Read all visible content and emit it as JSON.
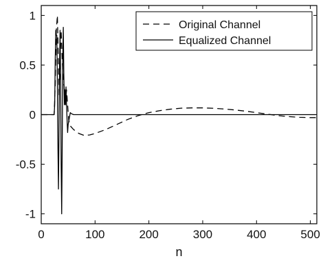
{
  "chart_data": {
    "type": "line",
    "title": "",
    "xlabel": "n",
    "ylabel": "",
    "xlim": [
      0,
      512
    ],
    "ylim": [
      -1.1,
      1.1
    ],
    "x_ticks": [
      0,
      100,
      200,
      300,
      400,
      500
    ],
    "y_ticks": [
      1,
      0.5,
      0,
      -0.5,
      -1
    ],
    "x_tick_labels": [
      "0",
      "100",
      "200",
      "300",
      "400",
      "500"
    ],
    "y_tick_labels": [
      "1",
      "0.5",
      "0",
      "-0.5",
      "-1"
    ],
    "grid": false,
    "legend": {
      "placement": "top-right",
      "entries": [
        "Original Channel",
        "Equalized Channel"
      ]
    },
    "series": [
      {
        "name": "Original Channel",
        "style": "dashed",
        "color": "#000000",
        "points": [
          [
            0,
            0
          ],
          [
            24,
            0
          ],
          [
            26,
            0.3
          ],
          [
            28,
            0.85
          ],
          [
            30,
            1.0
          ],
          [
            31,
            0.75
          ],
          [
            33,
            0.2
          ],
          [
            35,
            0.5
          ],
          [
            37,
            0.85
          ],
          [
            39,
            0.55
          ],
          [
            41,
            0.35
          ],
          [
            43,
            0.25
          ],
          [
            45,
            0.1
          ],
          [
            47,
            0.25
          ],
          [
            49,
            0.1
          ],
          [
            51,
            -0.05
          ],
          [
            53,
            -0.1
          ],
          [
            55,
            -0.12
          ],
          [
            60,
            -0.15
          ],
          [
            70,
            -0.19
          ],
          [
            80,
            -0.21
          ],
          [
            90,
            -0.205
          ],
          [
            100,
            -0.19
          ],
          [
            120,
            -0.15
          ],
          [
            140,
            -0.1
          ],
          [
            160,
            -0.05
          ],
          [
            180,
            -0.01
          ],
          [
            200,
            0.02
          ],
          [
            220,
            0.04
          ],
          [
            240,
            0.055
          ],
          [
            260,
            0.065
          ],
          [
            280,
            0.068
          ],
          [
            300,
            0.068
          ],
          [
            320,
            0.064
          ],
          [
            340,
            0.057
          ],
          [
            360,
            0.047
          ],
          [
            380,
            0.035
          ],
          [
            400,
            0.02
          ],
          [
            420,
            0.005
          ],
          [
            440,
            -0.01
          ],
          [
            460,
            -0.02
          ],
          [
            480,
            -0.027
          ],
          [
            500,
            -0.03
          ],
          [
            510,
            -0.03
          ]
        ]
      },
      {
        "name": "Equalized Channel",
        "style": "solid",
        "color": "#000000",
        "points": [
          [
            0,
            0
          ],
          [
            24,
            0
          ],
          [
            25,
            0.1
          ],
          [
            26,
            0.55
          ],
          [
            27,
            0.85
          ],
          [
            28,
            0.8
          ],
          [
            29,
            0.8
          ],
          [
            30,
            0.3
          ],
          [
            31,
            -0.3
          ],
          [
            32,
            -0.75
          ],
          [
            33,
            -0.2
          ],
          [
            34,
            0.5
          ],
          [
            35,
            0.85
          ],
          [
            36,
            0.35
          ],
          [
            37,
            -0.5
          ],
          [
            38,
            -1.0
          ],
          [
            39,
            -0.3
          ],
          [
            40,
            0.55
          ],
          [
            41,
            0.88
          ],
          [
            42,
            0.4
          ],
          [
            43,
            0.1
          ],
          [
            44,
            0.25
          ],
          [
            45,
            0.1
          ],
          [
            46,
            0.28
          ],
          [
            47,
            0.1
          ],
          [
            48,
            -0.05
          ],
          [
            49,
            -0.18
          ],
          [
            50,
            -0.1
          ],
          [
            52,
            -0.04
          ],
          [
            54,
            0.02
          ],
          [
            56,
            0.01
          ],
          [
            60,
            0.0
          ],
          [
            80,
            0.0
          ],
          [
            100,
            0.0
          ],
          [
            200,
            0.0
          ],
          [
            300,
            0.0
          ],
          [
            400,
            0.0
          ],
          [
            510,
            0.0
          ]
        ]
      }
    ]
  }
}
